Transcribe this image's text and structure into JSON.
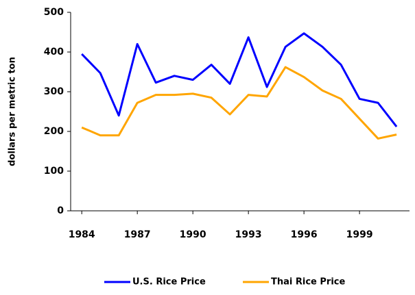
{
  "chart_data": {
    "type": "line",
    "y_label": "dollars per metric ton",
    "x": [
      1984,
      1985,
      1986,
      1987,
      1988,
      1989,
      1990,
      1991,
      1992,
      1993,
      1994,
      1995,
      1996,
      1997,
      1998,
      1999,
      2000,
      2001
    ],
    "series": [
      {
        "name": "U.S. Rice Price",
        "color": "#0000ff",
        "values": [
          395,
          347,
          240,
          420,
          323,
          340,
          330,
          368,
          320,
          437,
          312,
          413,
          447,
          413,
          368,
          282,
          272,
          212
        ]
      },
      {
        "name": "Thai Rice Price",
        "color": "#ffa500",
        "values": [
          210,
          190,
          190,
          272,
          292,
          292,
          295,
          285,
          243,
          292,
          288,
          362,
          337,
          303,
          282,
          232,
          182,
          192
        ]
      }
    ],
    "xlim": [
      1983.4,
      2001.7
    ],
    "xticks": [
      1984,
      1987,
      1990,
      1993,
      1996,
      1999
    ],
    "ylim": [
      0,
      500
    ],
    "yticks": [
      0,
      100,
      200,
      300,
      400,
      500
    ],
    "legend": "bottom"
  }
}
